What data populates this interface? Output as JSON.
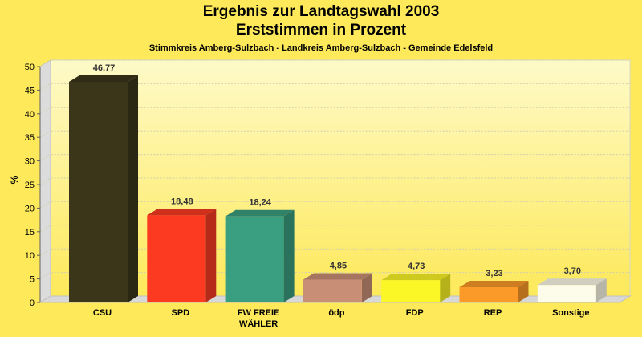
{
  "header": {
    "title_line1": "Ergebnis zur Landtagswahl 2003",
    "title_line2": "Erststimmen in Prozent",
    "subtitle": "Stimmkreis Amberg-Sulzbach - Landkreis Amberg-Sulzbach - Gemeinde Edelsfeld"
  },
  "chart_data": {
    "type": "bar",
    "title": "Ergebnis zur Landtagswahl 2003 - Erststimmen in Prozent",
    "subtitle": "Stimmkreis Amberg-Sulzbach - Landkreis Amberg-Sulzbach - Gemeinde Edelsfeld",
    "xlabel": "",
    "ylabel": "%",
    "ylim": [
      0,
      50
    ],
    "yticks": [
      0,
      5,
      10,
      15,
      20,
      25,
      30,
      35,
      40,
      45,
      50
    ],
    "grid": true,
    "categories": [
      [
        "CSU"
      ],
      [
        "SPD"
      ],
      [
        "FW FREIE",
        "WÄHLER"
      ],
      [
        "ödp"
      ],
      [
        "FDP"
      ],
      [
        "REP"
      ],
      [
        "Sonstige"
      ]
    ],
    "values": [
      46.77,
      18.48,
      18.24,
      4.85,
      4.73,
      3.23,
      3.7
    ],
    "value_labels": [
      "46,77",
      "18,48",
      "18,24",
      "4,85",
      "4,73",
      "3,23",
      "3,70"
    ],
    "colors": [
      "#3b3619",
      "#fb3a21",
      "#3a9f80",
      "#c98f76",
      "#fbf626",
      "#fb9a28",
      "#fdfbe9"
    ]
  }
}
